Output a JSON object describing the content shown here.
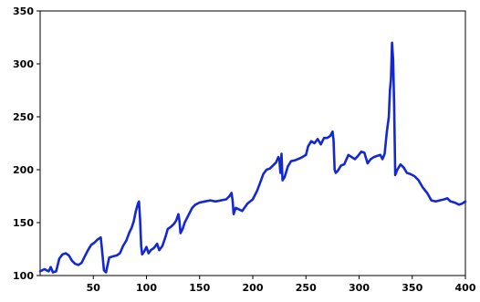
{
  "chart_data": {
    "type": "line",
    "title": "",
    "xlabel": "",
    "ylabel": "",
    "xlim": [
      0,
      400
    ],
    "ylim": [
      100,
      350
    ],
    "x_ticks": [
      50,
      100,
      150,
      200,
      250,
      300,
      350,
      400
    ],
    "y_ticks": [
      100,
      150,
      200,
      250,
      300,
      350
    ],
    "grid": false,
    "legend": "none",
    "colors": {
      "line": "#1428d2",
      "axis": "#000000",
      "background": "#ffffff"
    },
    "series": [
      {
        "values": [
          [
            0,
            104
          ],
          [
            4,
            106
          ],
          [
            8,
            104
          ],
          [
            10,
            108
          ],
          [
            12,
            103
          ],
          [
            15,
            104
          ],
          [
            18,
            116
          ],
          [
            21,
            120
          ],
          [
            24,
            121
          ],
          [
            27,
            119
          ],
          [
            30,
            114
          ],
          [
            33,
            111
          ],
          [
            36,
            110
          ],
          [
            39,
            112
          ],
          [
            42,
            118
          ],
          [
            45,
            124
          ],
          [
            48,
            129
          ],
          [
            51,
            131
          ],
          [
            54,
            134
          ],
          [
            57,
            136
          ],
          [
            58,
            126
          ],
          [
            60,
            105
          ],
          [
            62,
            103
          ],
          [
            63,
            108
          ],
          [
            65,
            117
          ],
          [
            68,
            118
          ],
          [
            72,
            119
          ],
          [
            75,
            121
          ],
          [
            78,
            128
          ],
          [
            81,
            133
          ],
          [
            84,
            141
          ],
          [
            86,
            145
          ],
          [
            88,
            151
          ],
          [
            90,
            161
          ],
          [
            92,
            168
          ],
          [
            93,
            170
          ],
          [
            94,
            153
          ],
          [
            95,
            128
          ],
          [
            96,
            120
          ],
          [
            98,
            123
          ],
          [
            100,
            127
          ],
          [
            102,
            121
          ],
          [
            104,
            124
          ],
          [
            107,
            126
          ],
          [
            110,
            130
          ],
          [
            112,
            124
          ],
          [
            115,
            128
          ],
          [
            118,
            137
          ],
          [
            120,
            144
          ],
          [
            123,
            146
          ],
          [
            126,
            149
          ],
          [
            128,
            152
          ],
          [
            130,
            158
          ],
          [
            131,
            152
          ],
          [
            132,
            140
          ],
          [
            134,
            144
          ],
          [
            136,
            150
          ],
          [
            140,
            158
          ],
          [
            143,
            164
          ],
          [
            146,
            167
          ],
          [
            150,
            169
          ],
          [
            155,
            170
          ],
          [
            160,
            171
          ],
          [
            165,
            170
          ],
          [
            170,
            171
          ],
          [
            175,
            172
          ],
          [
            178,
            175
          ],
          [
            180,
            178
          ],
          [
            181,
            171
          ],
          [
            182,
            158
          ],
          [
            184,
            164
          ],
          [
            186,
            163
          ],
          [
            190,
            161
          ],
          [
            195,
            168
          ],
          [
            200,
            172
          ],
          [
            204,
            180
          ],
          [
            207,
            188
          ],
          [
            210,
            196
          ],
          [
            213,
            200
          ],
          [
            216,
            201
          ],
          [
            219,
            204
          ],
          [
            222,
            207
          ],
          [
            224,
            212
          ],
          [
            225,
            210
          ],
          [
            226,
            197
          ],
          [
            227,
            215
          ],
          [
            228,
            190
          ],
          [
            230,
            193
          ],
          [
            233,
            203
          ],
          [
            236,
            208
          ],
          [
            240,
            209
          ],
          [
            245,
            211
          ],
          [
            250,
            214
          ],
          [
            252,
            222
          ],
          [
            255,
            227
          ],
          [
            258,
            225
          ],
          [
            261,
            229
          ],
          [
            264,
            224
          ],
          [
            267,
            230
          ],
          [
            270,
            230
          ],
          [
            273,
            232
          ],
          [
            275,
            236
          ],
          [
            276,
            228
          ],
          [
            277,
            200
          ],
          [
            278,
            197
          ],
          [
            280,
            199
          ],
          [
            283,
            204
          ],
          [
            286,
            205
          ],
          [
            290,
            214
          ],
          [
            293,
            212
          ],
          [
            296,
            210
          ],
          [
            299,
            213
          ],
          [
            302,
            217
          ],
          [
            305,
            216
          ],
          [
            308,
            206
          ],
          [
            311,
            210
          ],
          [
            314,
            212
          ],
          [
            317,
            213
          ],
          [
            320,
            214
          ],
          [
            322,
            210
          ],
          [
            324,
            215
          ],
          [
            326,
            235
          ],
          [
            328,
            250
          ],
          [
            329,
            275
          ],
          [
            330,
            285
          ],
          [
            331,
            320
          ],
          [
            332,
            304
          ],
          [
            333,
            262
          ],
          [
            334,
            195
          ],
          [
            336,
            200
          ],
          [
            339,
            205
          ],
          [
            342,
            202
          ],
          [
            345,
            197
          ],
          [
            348,
            196
          ],
          [
            352,
            194
          ],
          [
            356,
            190
          ],
          [
            360,
            183
          ],
          [
            364,
            178
          ],
          [
            368,
            171
          ],
          [
            372,
            170
          ],
          [
            376,
            171
          ],
          [
            380,
            172
          ],
          [
            383,
            173
          ],
          [
            386,
            170
          ],
          [
            390,
            169
          ],
          [
            394,
            167
          ],
          [
            397,
            168
          ],
          [
            400,
            170
          ]
        ]
      }
    ]
  }
}
